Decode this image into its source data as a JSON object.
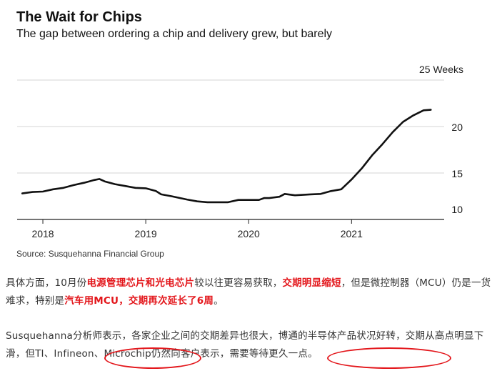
{
  "chart_data": {
    "type": "line",
    "title": "The Wait for Chips",
    "subtitle": "The gap between ordering a chip and delivery grew, but barely",
    "unit_label": "25 Weeks",
    "source": "Source: Susquehanna Financial Group",
    "x_ticks": [
      "2018",
      "2019",
      "2020",
      "2021"
    ],
    "y_ticks": [
      "10",
      "15",
      "20"
    ],
    "ylim": [
      10,
      25
    ],
    "xlim": [
      2017.75,
      2021.9
    ],
    "grid": true,
    "line_color": "#111111",
    "series": [
      {
        "x": [
          2017.8,
          2017.9,
          2018.0,
          2018.1,
          2018.2,
          2018.3,
          2018.4,
          2018.5,
          2018.55,
          2018.6,
          2018.7,
          2018.8,
          2018.9,
          2019.0,
          2019.1,
          2019.15,
          2019.25,
          2019.4,
          2019.5,
          2019.6,
          2019.7,
          2019.8,
          2019.9,
          2020.0,
          2020.1,
          2020.15,
          2020.2,
          2020.3,
          2020.35,
          2020.45,
          2020.6,
          2020.7,
          2020.8,
          2020.9,
          2021.0,
          2021.1,
          2021.2,
          2021.3,
          2021.4,
          2021.5,
          2021.6,
          2021.7,
          2021.77
        ],
        "y": [
          12.8,
          12.95,
          13.0,
          13.25,
          13.4,
          13.7,
          13.95,
          14.25,
          14.35,
          14.1,
          13.8,
          13.6,
          13.4,
          13.35,
          13.05,
          12.7,
          12.5,
          12.15,
          11.95,
          11.85,
          11.85,
          11.85,
          12.1,
          12.1,
          12.1,
          12.3,
          12.3,
          12.45,
          12.75,
          12.6,
          12.7,
          12.75,
          13.05,
          13.25,
          14.3,
          15.5,
          16.9,
          18.1,
          19.4,
          20.5,
          21.2,
          21.75,
          21.8
        ]
      }
    ]
  },
  "article": {
    "para1": {
      "t1": "具体方面，10月份",
      "h1": "电源管理芯片和光电芯片",
      "t2": "较以往更容易获取，",
      "h2": "交期明显缩短",
      "t3": "，但是微控制器（MCU）仍是一货难求，特别是",
      "h3": "汽车用MCU，交期再次延长了6周",
      "t4": "。"
    },
    "para2": {
      "text": "Susquehanna分析师表示，各家企业之间的交期差异也很大，博通的半导体产品状况好转，交期从高点明显下滑，但TI、Infineon、Microchip仍然向客户表示，需要等待更久一点。"
    }
  }
}
